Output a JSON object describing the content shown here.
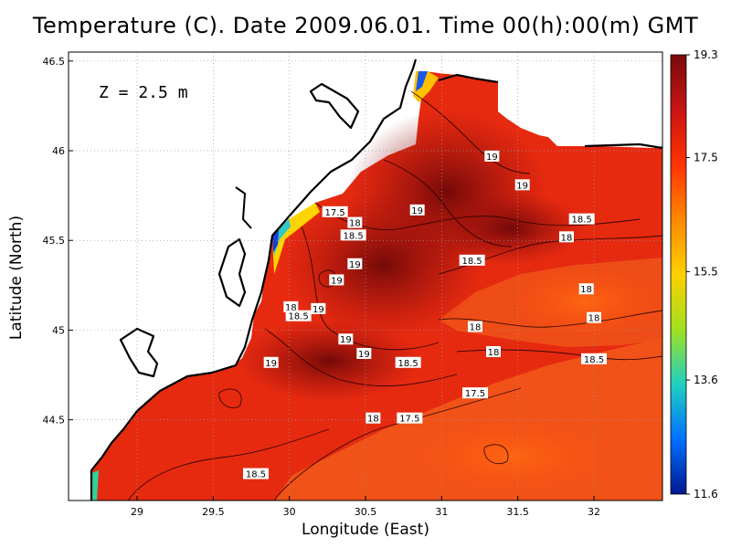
{
  "title": "Temperature (C). Date 2009.06.01. Time 00(h):00(m) GMT",
  "depth_label": "Z = 2.5 m",
  "axes": {
    "xlabel": "Longitude (East)",
    "ylabel": "Latitude (North)",
    "x_ticks": [
      "29",
      "29.5",
      "30",
      "30.5",
      "31",
      "31.5",
      "32"
    ],
    "y_ticks": [
      "46.5",
      "46",
      "45.5",
      "45",
      "44.5"
    ],
    "x_range": [
      28.55,
      32.45
    ],
    "y_range": [
      44.05,
      46.55
    ]
  },
  "colorbar": {
    "ticks": [
      "19.3",
      "17.5",
      "15.5",
      "13.6",
      "11.6"
    ],
    "min": 11.6,
    "max": 19.3,
    "colors": [
      "#7a0a0a",
      "#c81414",
      "#ff3300",
      "#ff8800",
      "#ffd000",
      "#a0e020",
      "#20d0c0",
      "#0070ff",
      "#001890"
    ]
  },
  "contour_labels": [
    {
      "text": "19",
      "lon": 31.33,
      "lat": 45.97
    },
    {
      "text": "19",
      "lon": 31.53,
      "lat": 45.81
    },
    {
      "text": "19",
      "lon": 30.84,
      "lat": 45.67
    },
    {
      "text": "18.5",
      "lon": 31.92,
      "lat": 45.62
    },
    {
      "text": "17.5",
      "lon": 30.3,
      "lat": 45.66
    },
    {
      "text": "18",
      "lon": 30.43,
      "lat": 45.6
    },
    {
      "text": "18.5",
      "lon": 30.42,
      "lat": 45.53
    },
    {
      "text": "18",
      "lon": 31.82,
      "lat": 45.52
    },
    {
      "text": "19",
      "lon": 30.43,
      "lat": 45.37
    },
    {
      "text": "18.5",
      "lon": 31.2,
      "lat": 45.39
    },
    {
      "text": "19",
      "lon": 30.31,
      "lat": 45.28
    },
    {
      "text": "18",
      "lon": 31.95,
      "lat": 45.23
    },
    {
      "text": "18",
      "lon": 30.01,
      "lat": 45.13
    },
    {
      "text": "19",
      "lon": 30.19,
      "lat": 45.12
    },
    {
      "text": "18.5",
      "lon": 30.06,
      "lat": 45.08
    },
    {
      "text": "18",
      "lon": 32.0,
      "lat": 45.07
    },
    {
      "text": "18",
      "lon": 31.22,
      "lat": 45.02
    },
    {
      "text": "19",
      "lon": 30.37,
      "lat": 44.95
    },
    {
      "text": "18",
      "lon": 31.34,
      "lat": 44.88
    },
    {
      "text": "19",
      "lon": 30.49,
      "lat": 44.87
    },
    {
      "text": "18.5",
      "lon": 30.78,
      "lat": 44.82
    },
    {
      "text": "18.5",
      "lon": 32.0,
      "lat": 44.84
    },
    {
      "text": "19",
      "lon": 29.88,
      "lat": 44.82
    },
    {
      "text": "17.5",
      "lon": 31.22,
      "lat": 44.65
    },
    {
      "text": "18",
      "lon": 30.55,
      "lat": 44.51
    },
    {
      "text": "17.5",
      "lon": 30.79,
      "lat": 44.51
    },
    {
      "text": "18.5",
      "lon": 29.78,
      "lat": 44.2
    }
  ]
}
